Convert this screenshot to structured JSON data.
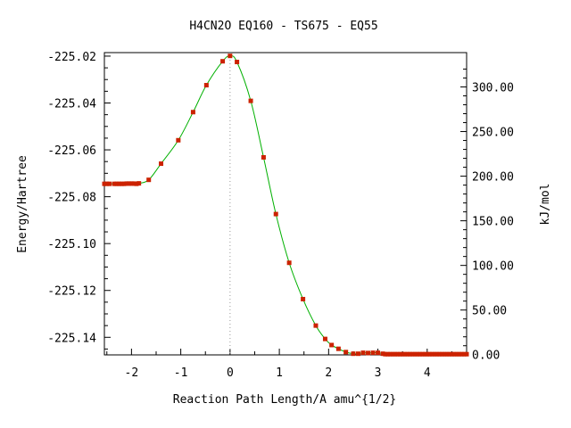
{
  "chart_data": {
    "type": "line",
    "title": "H4CN2O   EQ160 - TS675 - EQ55",
    "xlabel": "Reaction Path Length/A amu^{1/2}",
    "ylabel": "Energy/Hartree",
    "y2label": "kJ/mol",
    "xlim": [
      -2.55,
      4.8
    ],
    "ylim": [
      -225.1475,
      -225.0185
    ],
    "y2lim": [
      -0.26,
      338.45
    ],
    "x_ticks": [
      -2,
      -1,
      0,
      1,
      2,
      3,
      4
    ],
    "x_tick_labels": [
      "-2",
      "-1",
      "0",
      "1",
      "2",
      "3",
      "4"
    ],
    "y_ticks": [
      -225.02,
      -225.04,
      -225.06,
      -225.08,
      -225.1,
      -225.12,
      -225.14
    ],
    "y_tick_labels": [
      "-225.02",
      "-225.04",
      "-225.06",
      "-225.08",
      "-225.10",
      "-225.12",
      "-225.14"
    ],
    "y2_ticks": [
      0,
      50,
      100,
      150,
      200,
      250,
      300
    ],
    "y2_tick_labels": [
      "0.00",
      "50.00",
      "100.00",
      "150.00",
      "200.00",
      "250.00",
      "300.00"
    ],
    "grid": false,
    "ts_marker_x": 0,
    "colors": {
      "curve": "#00b000",
      "points": "#cc2200",
      "ts_line": "#999999"
    },
    "series": [
      {
        "x": [
          -2.55,
          -2.5,
          -2.45,
          -2.35,
          -2.3,
          -2.25,
          -2.2,
          -2.15,
          -2.1,
          -2.05,
          -2.0,
          -1.95,
          -1.9,
          -1.85,
          -1.65,
          -1.4,
          -1.05,
          -0.75,
          -0.48,
          -0.15,
          0.0,
          0.14,
          0.42,
          0.68,
          0.93,
          1.2,
          1.48,
          1.74,
          1.93,
          2.06,
          2.2,
          2.35,
          2.5,
          2.6,
          2.7,
          2.8,
          2.9,
          3.0,
          3.1,
          3.15,
          3.2,
          3.25,
          3.3,
          3.35,
          3.4,
          3.45,
          3.5,
          3.55,
          3.6,
          3.65,
          3.7,
          3.75,
          3.8,
          3.85,
          3.9,
          3.95,
          4.0,
          4.05,
          4.1,
          4.15,
          4.2,
          4.25,
          4.3,
          4.35,
          4.4,
          4.45,
          4.5,
          4.55,
          4.6,
          4.65,
          4.7,
          4.75,
          4.8
        ],
        "y": [
          -225.0745,
          -225.0745,
          -225.0745,
          -225.0745,
          -225.0745,
          -225.0745,
          -225.0745,
          -225.0745,
          -225.0744,
          -225.0744,
          -225.0744,
          -225.0744,
          -225.0745,
          -225.0743,
          -225.0728,
          -225.0659,
          -225.0559,
          -225.0439,
          -225.0324,
          -225.0222,
          -225.0199,
          -225.0225,
          -225.0391,
          -225.0632,
          -225.0874,
          -225.1082,
          -225.1237,
          -225.135,
          -225.1407,
          -225.1433,
          -225.1449,
          -225.1463,
          -225.147,
          -225.147,
          -225.1466,
          -225.1467,
          -225.1466,
          -225.1466,
          -225.147,
          -225.1472,
          -225.1472,
          -225.1472,
          -225.1472,
          -225.1472,
          -225.1472,
          -225.1472,
          -225.1472,
          -225.1472,
          -225.1472,
          -225.1472,
          -225.1472,
          -225.1472,
          -225.1472,
          -225.1472,
          -225.1472,
          -225.1472,
          -225.1472,
          -225.1472,
          -225.1472,
          -225.1472,
          -225.1472,
          -225.1472,
          -225.1472,
          -225.1472,
          -225.1472,
          -225.1472,
          -225.1472,
          -225.1472,
          -225.1472,
          -225.1472,
          -225.1472,
          -225.1472,
          -225.1472
        ]
      }
    ]
  }
}
